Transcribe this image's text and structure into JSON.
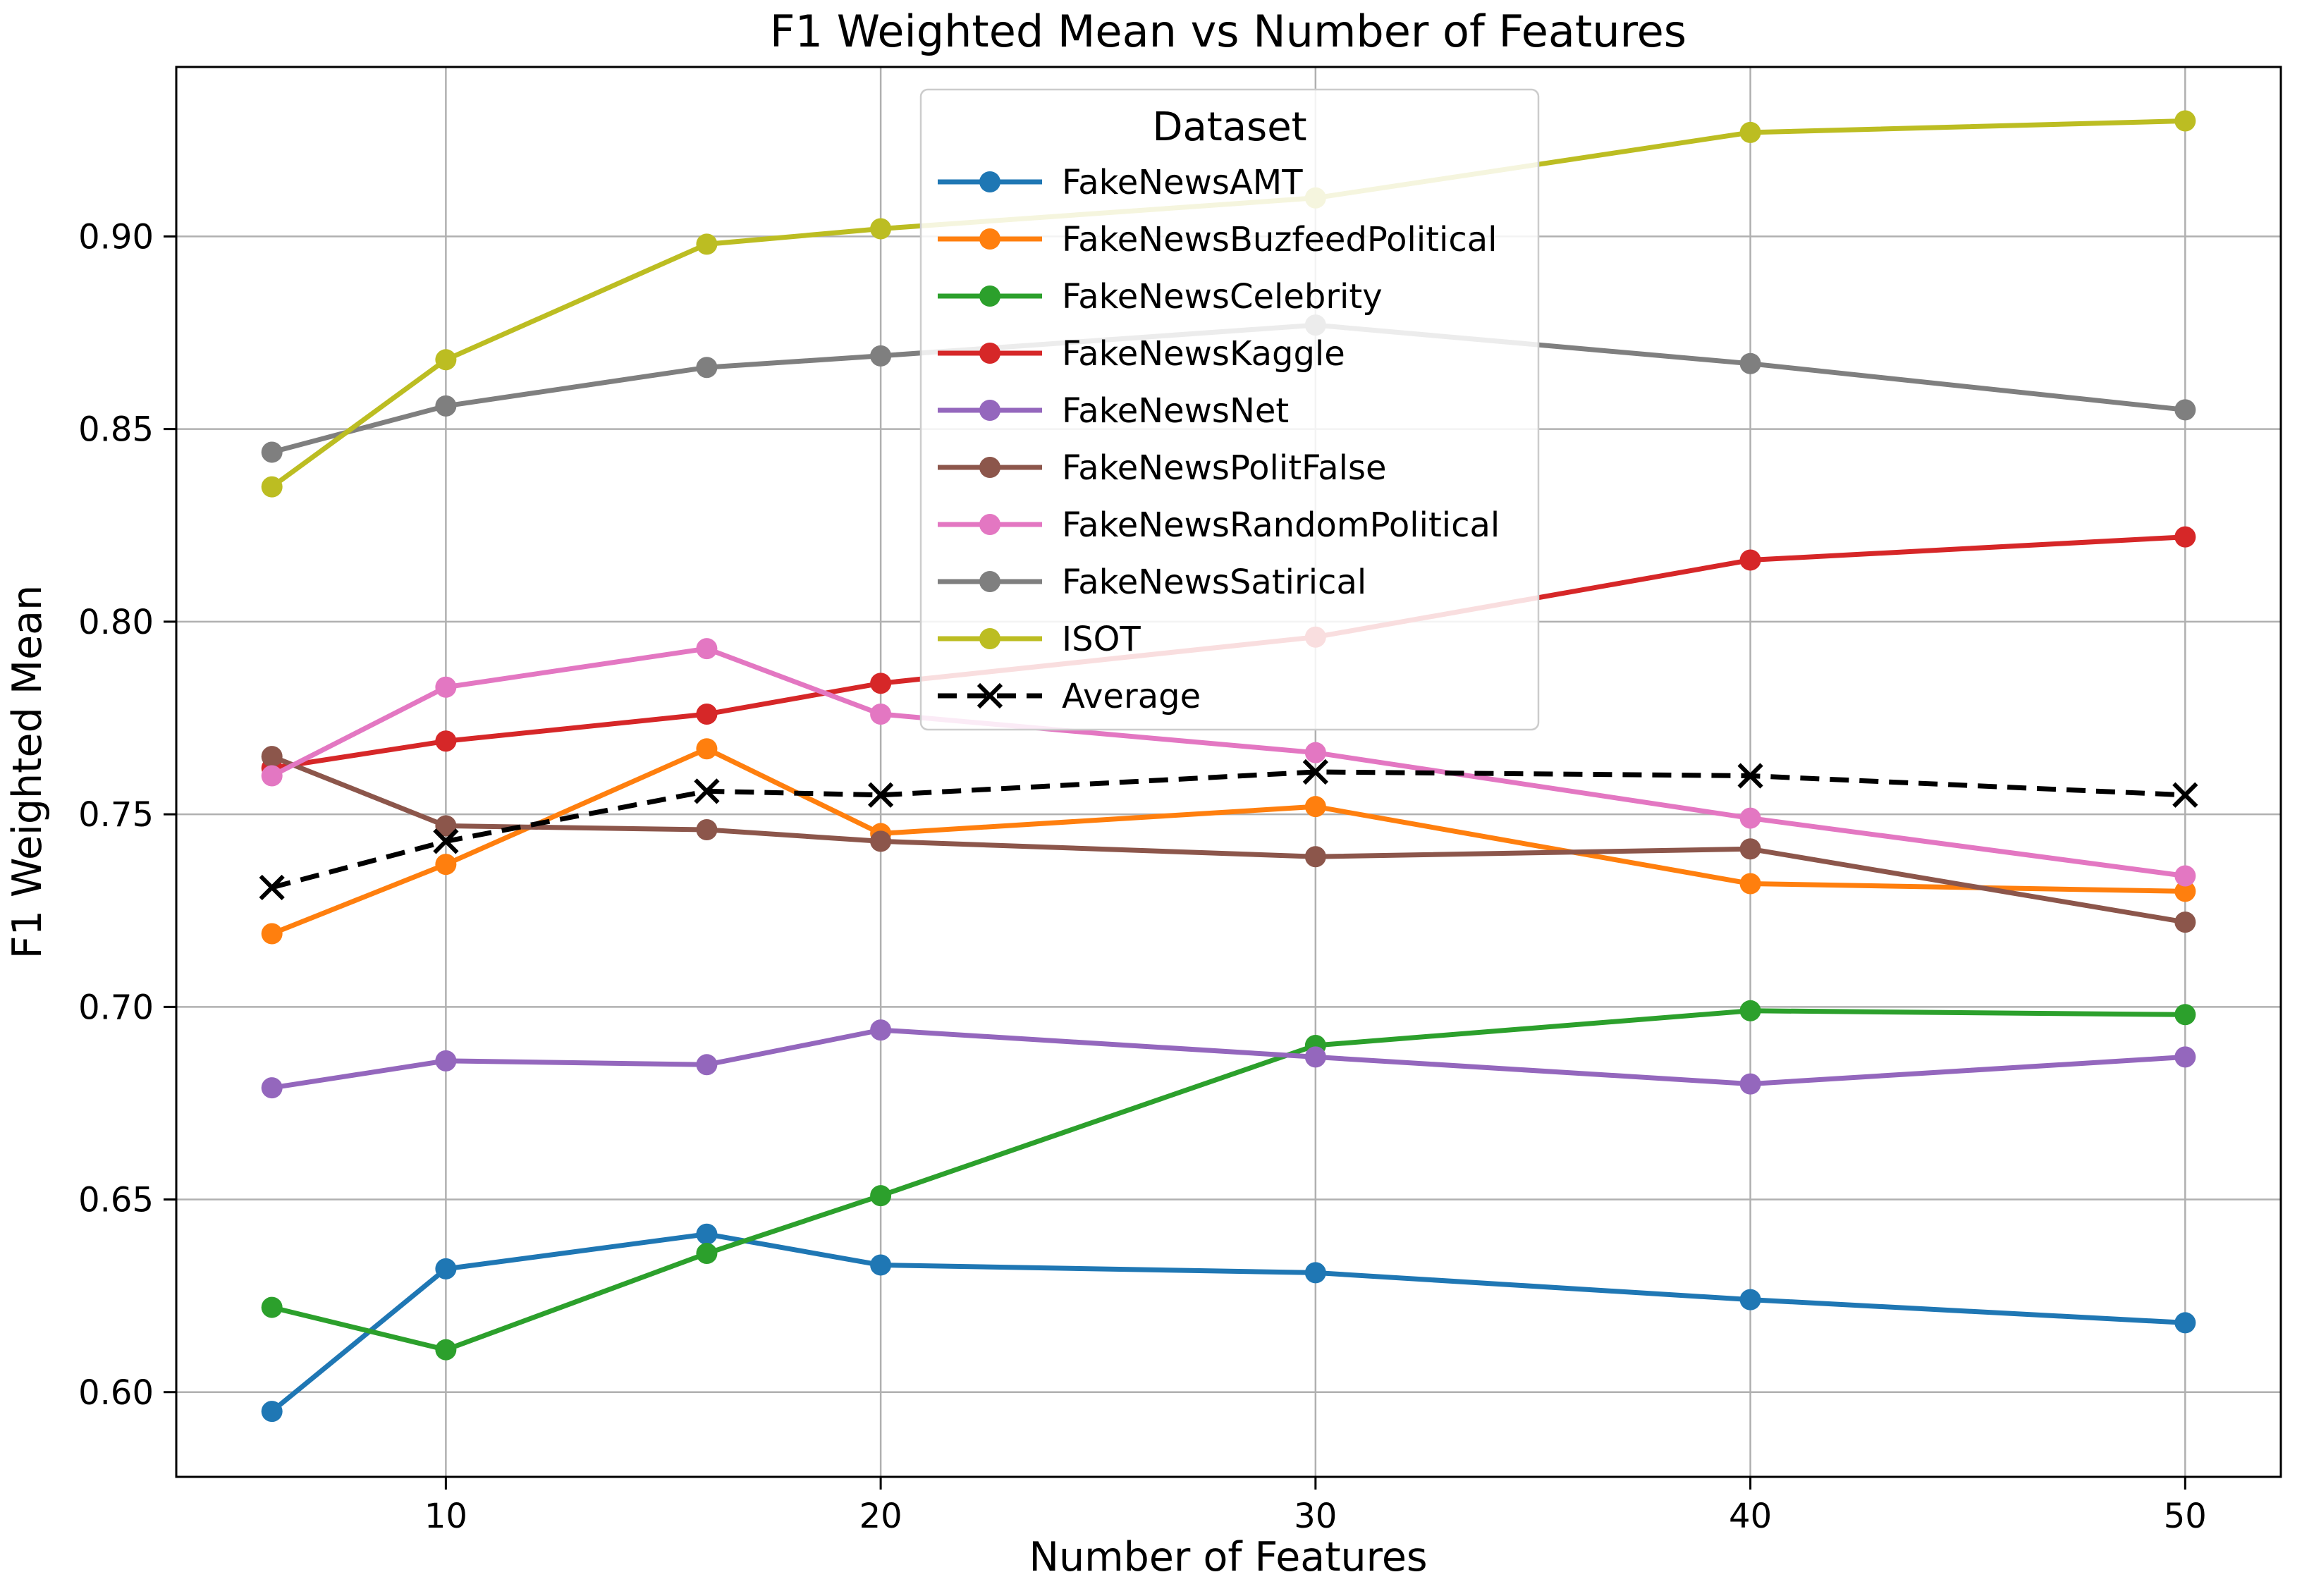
{
  "chart_data": {
    "type": "line",
    "title": "F1 Weighted Mean vs Number of Features",
    "xlabel": "Number of Features",
    "ylabel": "F1 Weighted Mean",
    "x": [
      6,
      10,
      16,
      20,
      30,
      40,
      50
    ],
    "xticks": [
      10,
      20,
      30,
      40,
      50
    ],
    "xtick_labels": [
      "10",
      "20",
      "30",
      "40",
      "50"
    ],
    "yticks": [
      0.6,
      0.65,
      0.7,
      0.75,
      0.8,
      0.85,
      0.9
    ],
    "ytick_labels": [
      "0.60",
      "0.65",
      "0.70",
      "0.75",
      "0.80",
      "0.85",
      "0.90"
    ],
    "xlim": [
      3.8,
      52.2
    ],
    "ylim": [
      0.578,
      0.944
    ],
    "grid": true,
    "grid_color": "#b0b0b0",
    "legend_title": "Dataset",
    "legend_position": "upper center",
    "series": [
      {
        "name": "FakeNewsAMT",
        "color": "#1f77b4",
        "line": "solid",
        "marker": "circle",
        "values": [
          0.595,
          0.632,
          0.641,
          0.633,
          0.631,
          0.624,
          0.618
        ]
      },
      {
        "name": "FakeNewsBuzfeedPolitical",
        "color": "#ff7f0e",
        "line": "solid",
        "marker": "circle",
        "values": [
          0.719,
          0.737,
          0.767,
          0.745,
          0.752,
          0.732,
          0.73
        ]
      },
      {
        "name": "FakeNewsCelebrity",
        "color": "#2ca02c",
        "line": "solid",
        "marker": "circle",
        "values": [
          0.622,
          0.611,
          0.636,
          0.651,
          0.69,
          0.699,
          0.698
        ]
      },
      {
        "name": "FakeNewsKaggle",
        "color": "#d62728",
        "line": "solid",
        "marker": "circle",
        "values": [
          0.762,
          0.769,
          0.776,
          0.784,
          0.796,
          0.816,
          0.822
        ]
      },
      {
        "name": "FakeNewsNet",
        "color": "#9467bd",
        "line": "solid",
        "marker": "circle",
        "values": [
          0.679,
          0.686,
          0.685,
          0.694,
          0.687,
          0.68,
          0.687
        ]
      },
      {
        "name": "FakeNewsPolitFalse",
        "color": "#8c564b",
        "line": "solid",
        "marker": "circle",
        "values": [
          0.765,
          0.747,
          0.746,
          0.743,
          0.739,
          0.741,
          0.722
        ]
      },
      {
        "name": "FakeNewsRandomPolitical",
        "color": "#e377c2",
        "line": "solid",
        "marker": "circle",
        "values": [
          0.76,
          0.783,
          0.793,
          0.776,
          0.766,
          0.749,
          0.734
        ]
      },
      {
        "name": "FakeNewsSatirical",
        "color": "#7f7f7f",
        "line": "solid",
        "marker": "circle",
        "values": [
          0.844,
          0.856,
          0.866,
          0.869,
          0.877,
          0.867,
          0.855
        ]
      },
      {
        "name": "ISOT",
        "color": "#bcbd22",
        "line": "solid",
        "marker": "circle",
        "values": [
          0.835,
          0.868,
          0.898,
          0.902,
          0.91,
          0.927,
          0.93
        ]
      },
      {
        "name": "Average",
        "color": "#000000",
        "line": "dashed",
        "marker": "x",
        "values": [
          0.731,
          0.743,
          0.756,
          0.755,
          0.761,
          0.76,
          0.755
        ]
      }
    ]
  }
}
